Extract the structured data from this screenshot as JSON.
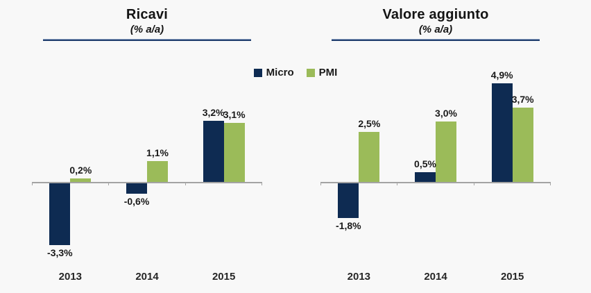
{
  "page": {
    "background": "#f8f8f8"
  },
  "legend": {
    "items": [
      {
        "label": "Micro",
        "color": "#0e2b52"
      },
      {
        "label": "PMI",
        "color": "#9bbb59"
      }
    ]
  },
  "chart_data": [
    {
      "type": "bar",
      "title": "Ricavi",
      "subtitle": "(% a/a)",
      "xlabel": "",
      "ylabel": "",
      "categories": [
        "2013",
        "2014",
        "2015"
      ],
      "series": [
        {
          "name": "Micro",
          "color": "#0e2b52",
          "values": [
            -3.3,
            -0.6,
            3.2
          ],
          "labels": [
            "-3,3%",
            "-0,6%",
            "3,2%"
          ]
        },
        {
          "name": "PMI",
          "color": "#9bbb59",
          "values": [
            0.2,
            1.1,
            3.1
          ],
          "labels": [
            "0,2%",
            "1,1%",
            "3,1%"
          ]
        }
      ],
      "ylim": [
        -4,
        4
      ],
      "grid": false,
      "legend_position": "top-center",
      "axis_color": "#a3a3a3",
      "title_rule_color": "#1f3d6e"
    },
    {
      "type": "bar",
      "title": "Valore aggiunto",
      "subtitle": "(% a/a)",
      "xlabel": "",
      "ylabel": "",
      "categories": [
        "2013",
        "2014",
        "2015"
      ],
      "series": [
        {
          "name": "Micro",
          "color": "#0e2b52",
          "values": [
            -1.8,
            0.5,
            4.9
          ],
          "labels": [
            "-1,8%",
            "0,5%",
            "4,9%"
          ]
        },
        {
          "name": "PMI",
          "color": "#9bbb59",
          "values": [
            2.5,
            3.0,
            3.7
          ],
          "labels": [
            "2,5%",
            "3,0%",
            "3,7%"
          ]
        }
      ],
      "ylim": [
        -2.5,
        5.2
      ],
      "grid": false,
      "legend_position": "top-center",
      "axis_color": "#a3a3a3",
      "title_rule_color": "#1f3d6e"
    }
  ]
}
